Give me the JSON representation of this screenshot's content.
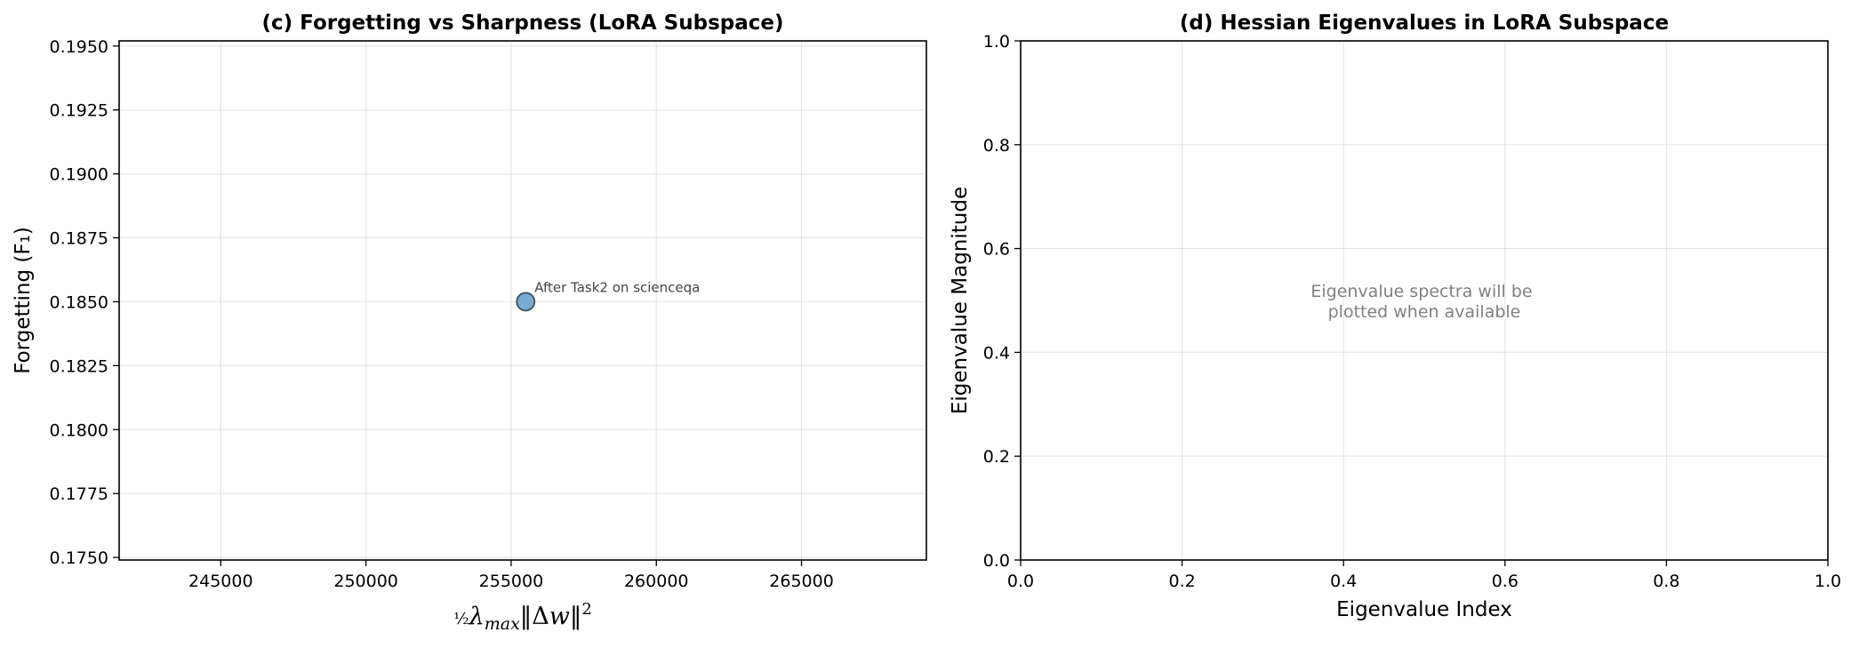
{
  "chart_data": [
    {
      "type": "scatter",
      "title": "(c) Forgetting vs Sharpness (LoRA Subspace)",
      "xlabel": "½λmax‖Δw‖²",
      "ylabel": "Forgetting (F₁)",
      "xlim": [
        241500,
        269300
      ],
      "ylim": [
        0.1749,
        0.1952
      ],
      "xticks": [
        245000,
        250000,
        255000,
        260000,
        265000
      ],
      "xtick_labels": [
        "245000",
        "250000",
        "255000",
        "260000",
        "265000"
      ],
      "yticks": [
        0.175,
        0.1775,
        0.18,
        0.1825,
        0.185,
        0.1875,
        0.19,
        0.1925,
        0.195
      ],
      "ytick_labels": [
        "0.1750",
        "0.1775",
        "0.1800",
        "0.1825",
        "0.1850",
        "0.1875",
        "0.1900",
        "0.1925",
        "0.1950"
      ],
      "grid": true,
      "points": [
        {
          "x": 255500,
          "y": 0.185,
          "label": "After Task2 on scienceqa"
        }
      ],
      "colors": {
        "marker": "#7aaad0",
        "marker_edge": "#3d4f60"
      }
    },
    {
      "type": "line",
      "title": "(d) Hessian Eigenvalues in LoRA Subspace",
      "xlabel": "Eigenvalue Index",
      "ylabel": "Eigenvalue Magnitude",
      "xlim": [
        0,
        1
      ],
      "ylim": [
        0,
        1
      ],
      "xticks": [
        0.0,
        0.2,
        0.4,
        0.6,
        0.8,
        1.0
      ],
      "xtick_labels": [
        "0.0",
        "0.2",
        "0.4",
        "0.6",
        "0.8",
        "1.0"
      ],
      "yticks": [
        0.0,
        0.2,
        0.4,
        0.6,
        0.8,
        1.0
      ],
      "ytick_labels": [
        "0.0",
        "0.2",
        "0.4",
        "0.6",
        "0.8",
        "1.0"
      ],
      "grid": true,
      "series": [],
      "annotation": {
        "lines": [
          "Eigenvalue spectra will be",
          "plotted when available"
        ],
        "x": 0.5,
        "y": 0.5
      }
    }
  ]
}
